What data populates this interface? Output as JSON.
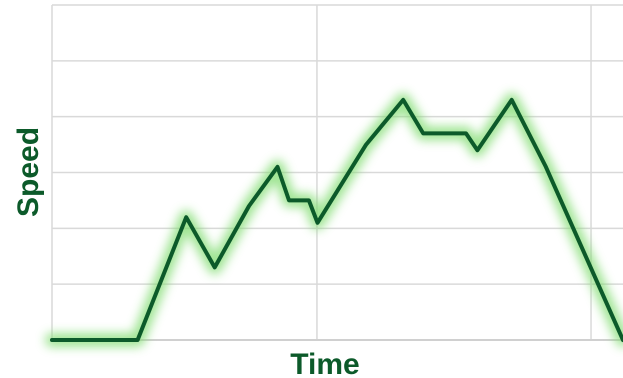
{
  "chart_data": {
    "type": "line",
    "xlabel": "Time",
    "ylabel": "Speed",
    "xlim": [
      0,
      100
    ],
    "ylim": [
      0,
      6
    ],
    "x_gridlines": [
      0,
      46.4,
      94.4
    ],
    "y_gridlines": [
      0,
      1,
      2,
      3,
      4,
      5,
      6
    ],
    "grid": true,
    "legend": "none",
    "series": [
      {
        "values": [
          [
            0,
            0
          ],
          [
            15,
            0
          ],
          [
            23.5,
            2.2
          ],
          [
            28.5,
            1.3
          ],
          [
            34.5,
            2.4
          ],
          [
            39.5,
            3.1
          ],
          [
            41.5,
            2.5
          ],
          [
            45,
            2.5
          ],
          [
            46.5,
            2.1
          ],
          [
            55,
            3.5
          ],
          [
            61.5,
            4.3
          ],
          [
            65,
            3.7
          ],
          [
            72.5,
            3.7
          ],
          [
            74.5,
            3.4
          ],
          [
            80.5,
            4.3
          ],
          [
            86.5,
            3.1
          ],
          [
            100,
            0
          ]
        ]
      }
    ]
  },
  "colors": {
    "line": "#0c5a2a",
    "glow": "#7fdc6e",
    "axis_title": "#0c5a2a",
    "grid": "#d9d9d9"
  }
}
